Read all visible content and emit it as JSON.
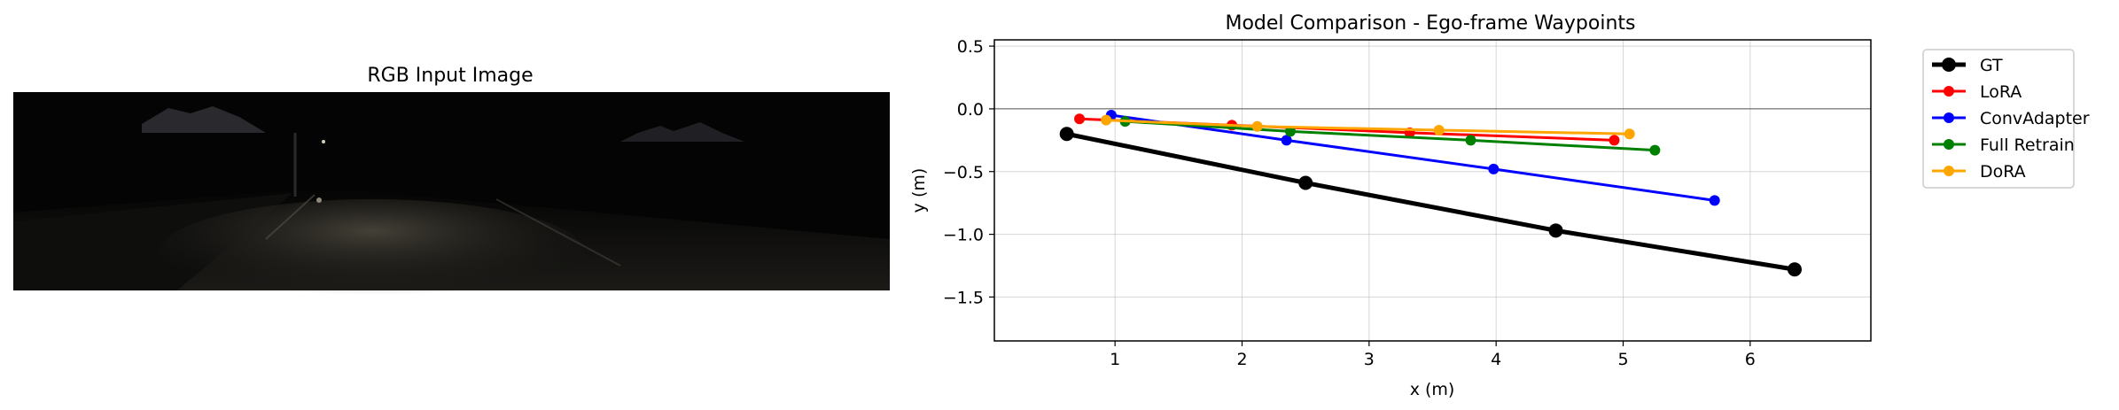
{
  "image_panel": {
    "title": "RGB Input Image"
  },
  "chart_data": {
    "type": "line",
    "title": "Model Comparison - Ego-frame Waypoints",
    "xlabel": "x (m)",
    "ylabel": "y (m)",
    "xlim": [
      0.05,
      6.95
    ],
    "ylim": [
      -1.85,
      0.55
    ],
    "xticks": [
      1,
      2,
      3,
      4,
      5,
      6
    ],
    "yticks": [
      0.5,
      0.0,
      -0.5,
      -1.0,
      -1.5
    ],
    "xtick_labels": [
      "1",
      "2",
      "3",
      "4",
      "5",
      "6"
    ],
    "ytick_labels": [
      "0.5",
      "0.0",
      "−0.5",
      "−1.0",
      "−1.5"
    ],
    "grid": true,
    "reference_line_y": 0.0,
    "legend_position": "outside-right-top",
    "series": [
      {
        "name": "GT",
        "color": "#000000",
        "x": [
          0.62,
          2.5,
          4.47,
          6.35
        ],
        "y": [
          -0.2,
          -0.59,
          -0.97,
          -1.28
        ]
      },
      {
        "name": "LoRA",
        "color": "#ff0000",
        "x": [
          0.72,
          1.92,
          3.32,
          4.93
        ],
        "y": [
          -0.08,
          -0.13,
          -0.19,
          -0.25
        ]
      },
      {
        "name": "ConvAdapter",
        "color": "#0000ff",
        "x": [
          0.97,
          2.35,
          3.98,
          5.72
        ],
        "y": [
          -0.05,
          -0.25,
          -0.48,
          -0.73
        ]
      },
      {
        "name": "Full Retrain",
        "color": "#008000",
        "x": [
          1.08,
          2.38,
          3.8,
          5.25
        ],
        "y": [
          -0.1,
          -0.18,
          -0.25,
          -0.33
        ]
      },
      {
        "name": "DoRA",
        "color": "#ffa500",
        "x": [
          0.93,
          2.12,
          3.55,
          5.05
        ],
        "y": [
          -0.09,
          -0.14,
          -0.17,
          -0.2
        ]
      }
    ]
  }
}
